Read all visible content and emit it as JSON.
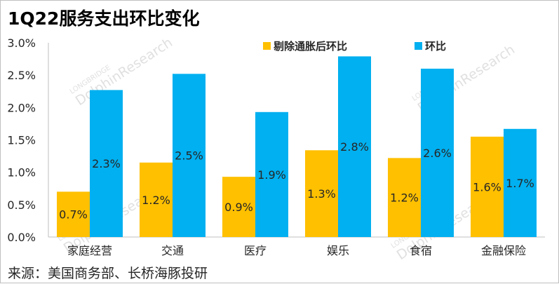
{
  "title": "1Q22服务支出环比变化",
  "source": "来源：美国商务部、长桥海豚投研",
  "watermark": {
    "brand": "LONGBRIDGE",
    "name": "DolphinResearch"
  },
  "colors": {
    "series1": "#FFC000",
    "series2": "#00B0F0",
    "axis": "#bfbfbf",
    "label_text": "#262626"
  },
  "chart_data": {
    "type": "bar",
    "categories": [
      "家庭经营",
      "交通",
      "医疗",
      "娱乐",
      "食宿",
      "金融保险"
    ],
    "series": [
      {
        "name": "剔除通胀后环比",
        "values": [
          0.7,
          1.15,
          0.93,
          1.34,
          1.22,
          1.55
        ],
        "labels": [
          "0.7%",
          "1.2%",
          "0.9%",
          "1.3%",
          "1.2%",
          "1.6%"
        ]
      },
      {
        "name": "环比",
        "values": [
          2.27,
          2.52,
          1.93,
          2.79,
          2.6,
          1.67
        ],
        "labels": [
          "2.3%",
          "2.5%",
          "1.9%",
          "2.8%",
          "2.6%",
          "1.7%"
        ]
      }
    ],
    "y_ticks": [
      "0.0%",
      "0.5%",
      "1.0%",
      "1.5%",
      "2.0%",
      "2.5%",
      "3.0%"
    ],
    "ylim": [
      0,
      3.0
    ],
    "grid": false,
    "legend_position": "top"
  }
}
